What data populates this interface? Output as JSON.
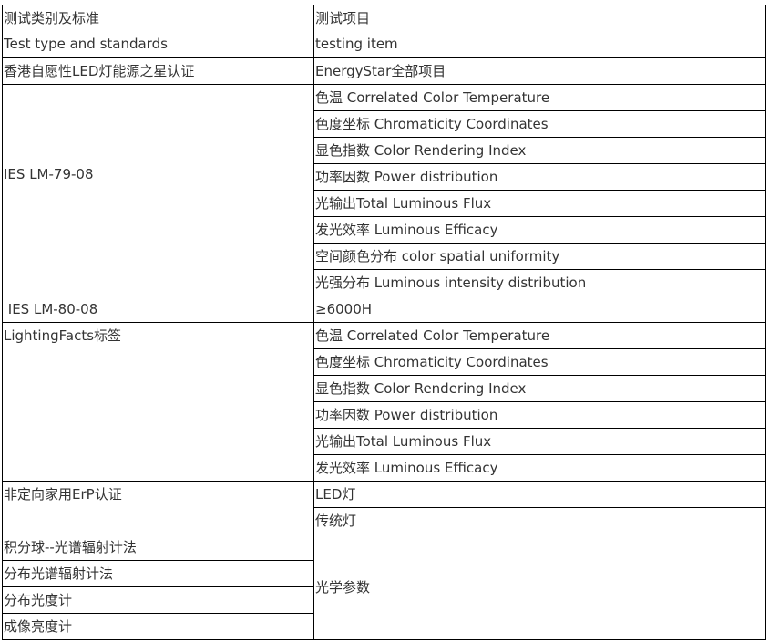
{
  "header": {
    "col1_cn": "测试类别及标准",
    "col1_en": "Test type and standards",
    "col2_cn": "测试项目",
    "col2_en": "testing item"
  },
  "rows": {
    "energystar": {
      "standard": "香港自愿性LED灯能源之星认证",
      "item": "EnergyStar全部项目"
    },
    "lm79": {
      "standard": "IES LM-79-08",
      "items": [
        "色温 Correlated Color Temperature",
        "色度坐标 Chromaticity Coordinates",
        "显色指数 Color Rendering Index",
        "功率因数 Power distribution",
        "光输出Total Luminous Flux",
        "发光效率 Luminous Efficacy",
        "空间颜色分布 color spatial uniformity",
        "光强分布 Luminous intensity distribution"
      ]
    },
    "lm80": {
      "standard": " IES LM-80-08",
      "item": "≥6000H"
    },
    "lightingfacts": {
      "standard": "LightingFacts标签",
      "items": [
        "色温 Correlated Color Temperature",
        "色度坐标 Chromaticity Coordinates",
        "显色指数 Color Rendering Index",
        "功率因数 Power distribution",
        "光输出Total Luminous Flux",
        "发光效率 Luminous Efficacy"
      ]
    },
    "erp": {
      "standard": "非定向家用ErP认证",
      "items": [
        "LED灯",
        "传统灯"
      ]
    },
    "optical": {
      "standards": [
        "积分球--光谱辐射计法",
        "分布光谱辐射计法",
        "分布光度计",
        "成像亮度计"
      ],
      "item": "光学参数"
    }
  }
}
